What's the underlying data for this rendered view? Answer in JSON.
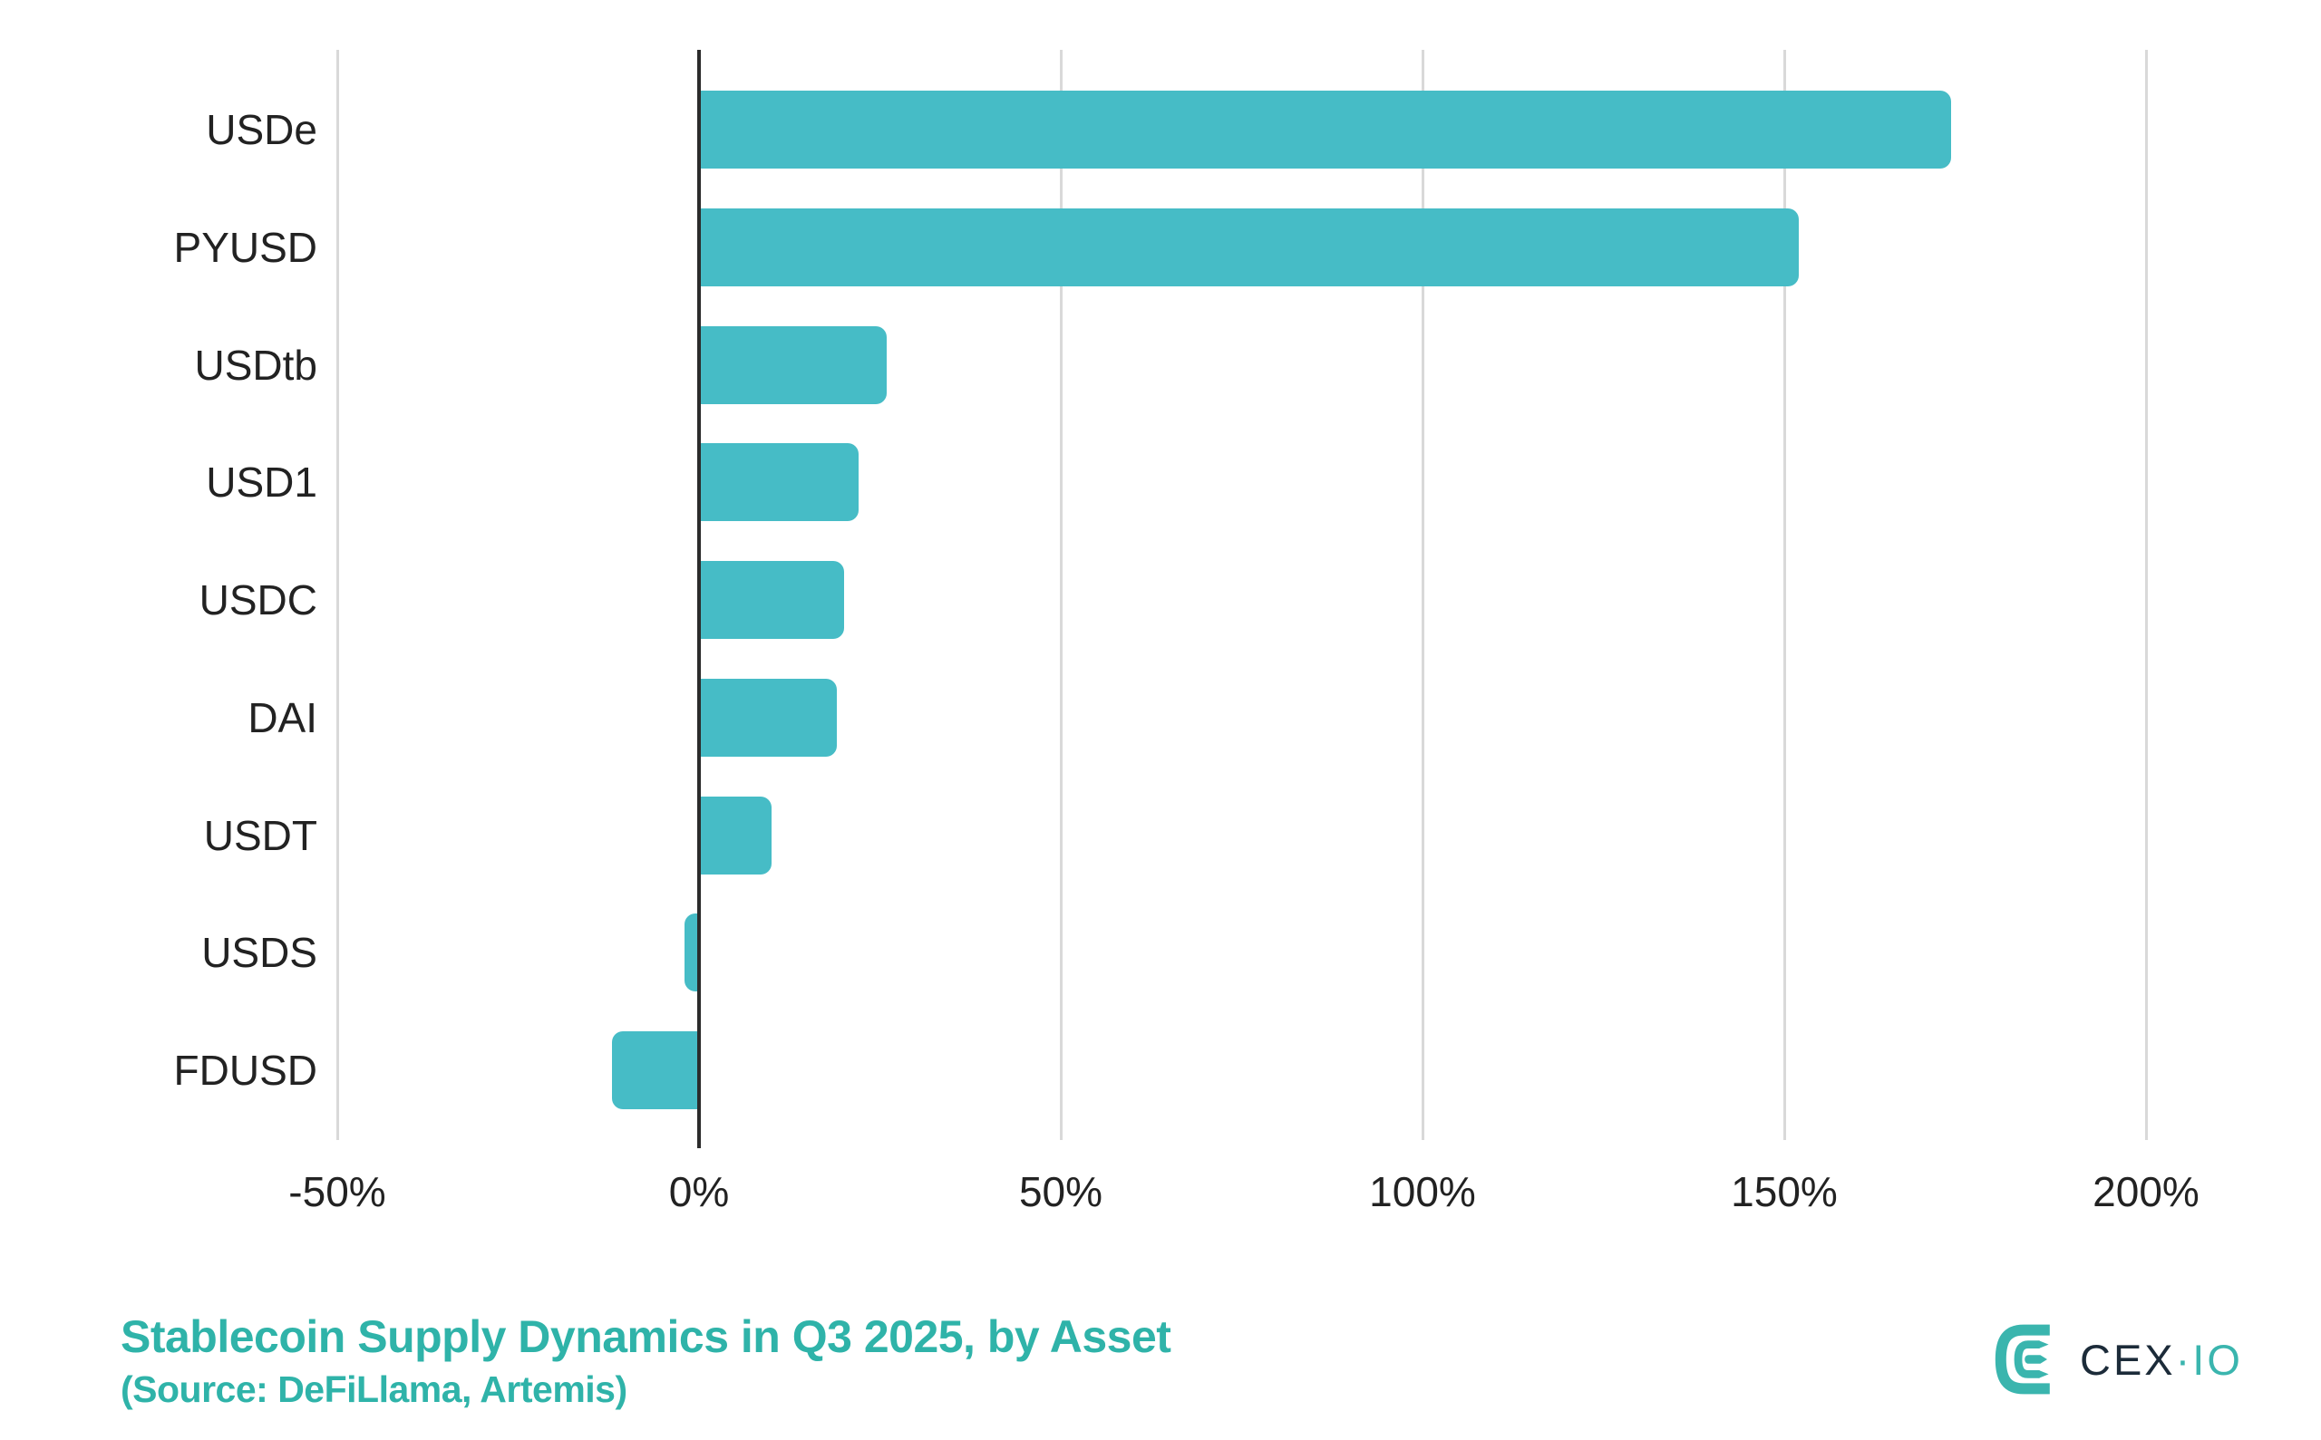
{
  "chart_data": {
    "type": "bar",
    "orientation": "horizontal",
    "title": "Stablecoin Supply Dynamics in Q3 2025, by Asset",
    "subtitle": "(Source: DeFiLlama, Artemis)",
    "categories": [
      "USDe",
      "PYUSD",
      "USDtb",
      "USD1",
      "USDC",
      "DAI",
      "USDT",
      "USDS",
      "FDUSD"
    ],
    "values": [
      173,
      152,
      26,
      22,
      20,
      19,
      10,
      -2,
      -12
    ],
    "unit": "%",
    "xlabel": "",
    "ylabel": "",
    "xticks": [
      {
        "value": -50,
        "label": "-50%"
      },
      {
        "value": 0,
        "label": "0%"
      },
      {
        "value": 50,
        "label": "50%"
      },
      {
        "value": 100,
        "label": "100%"
      },
      {
        "value": 150,
        "label": "150%"
      },
      {
        "value": 200,
        "label": "200%"
      }
    ],
    "xlim": [
      -66,
      212
    ],
    "grid": "vertical-only",
    "legend": "none",
    "colors": {
      "bar": "#46BCC6",
      "grid_line": "#d9d9d9",
      "zero_line": "#2b2b2b",
      "axis_text": "#222222",
      "title_text": "#2FB3A9"
    }
  },
  "logo": {
    "brand_dark": "CEX",
    "separator": "·",
    "brand_teal": "IO",
    "colors": {
      "dark": "#1C2B39",
      "teal": "#3AB5AE"
    }
  }
}
